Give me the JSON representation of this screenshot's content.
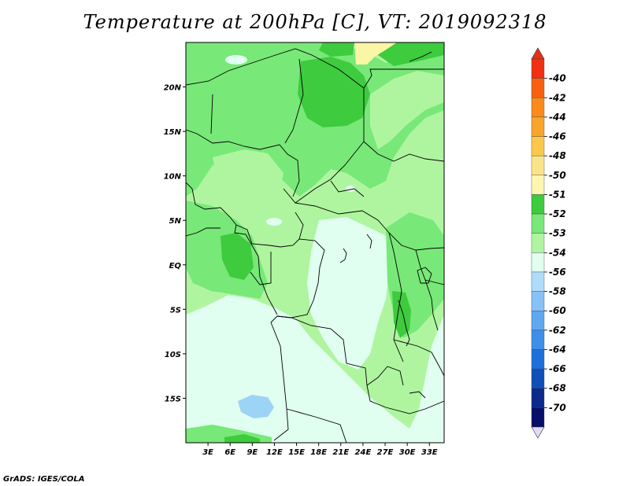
{
  "title": "Temperature at 200hPa [C], VT: 2019092318",
  "credit": "GrADS: IGES/COLA",
  "colors": {
    "fill_54": "#e0fff0",
    "fill_53": "#aff5a0",
    "fill_52": "#78e878",
    "fill_51": "#3ecb3e",
    "fill_50": "#fbf5a6",
    "fill_56": "#9dd3f5",
    "border": "#000000"
  },
  "map": {
    "lon_labels": [
      "3E",
      "6E",
      "9E",
      "12E",
      "15E",
      "18E",
      "21E",
      "24E",
      "27E",
      "30E",
      "33E"
    ],
    "lon_values": [
      3,
      6,
      9,
      12,
      15,
      18,
      21,
      24,
      27,
      30,
      33
    ],
    "lat_labels": [
      "20N",
      "15N",
      "10N",
      "5N",
      "EQ",
      "5S",
      "10S",
      "15S"
    ],
    "lat_values": [
      20,
      15,
      10,
      5,
      0,
      -5,
      -10,
      -15
    ],
    "lon_range": [
      0,
      35
    ],
    "lat_range": [
      -20,
      25
    ]
  },
  "colorbar": {
    "labels": [
      "-40",
      "-42",
      "-44",
      "-46",
      "-48",
      "-50",
      "-51",
      "-52",
      "-53",
      "-54",
      "-56",
      "-58",
      "-60",
      "-62",
      "-64",
      "-66",
      "-68",
      "-70"
    ],
    "colors": [
      "#f03010",
      "#f86010",
      "#fb8a1a",
      "#fba42a",
      "#fbc84c",
      "#fbe488",
      "#fdf5b0",
      "#3ecb3e",
      "#78e878",
      "#aff5a0",
      "#e0fff0",
      "#aedcfa",
      "#86c2f6",
      "#5ea8f0",
      "#3d8ee8",
      "#1d70dc",
      "#0e4fb8",
      "#0a2a8c",
      "#06106a"
    ],
    "top_color": "#e83018",
    "bottom_color": "#e0dcf8"
  }
}
